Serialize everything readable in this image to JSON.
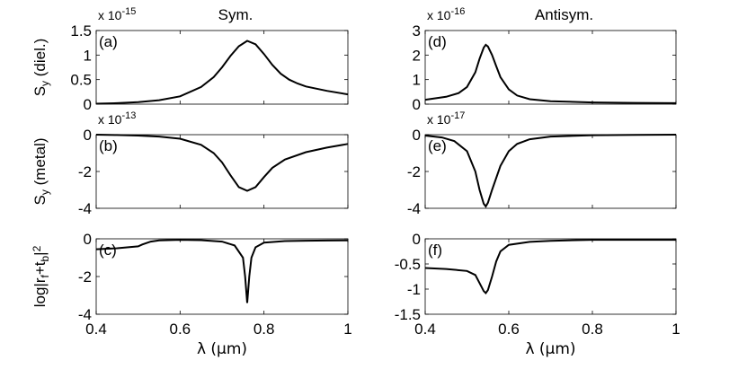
{
  "chart_data": [
    {
      "id": "a",
      "type": "line",
      "column_title": "Sym.",
      "panel_label": "(a)",
      "ylabel": "S_y (diel.)",
      "exponent_label": "x 10^-15",
      "xlim": [
        0.4,
        1.0
      ],
      "ylim": [
        0,
        1.5
      ],
      "xticks": [
        "0.4",
        "0.6",
        "0.8",
        "1"
      ],
      "xticks_shown": false,
      "yticks": [
        {
          "v": 0,
          "t": "0"
        },
        {
          "v": 0.5,
          "t": "0.5"
        },
        {
          "v": 1,
          "t": "1"
        },
        {
          "v": 1.5,
          "t": "1.5"
        }
      ],
      "x": [
        0.4,
        0.45,
        0.5,
        0.55,
        0.6,
        0.65,
        0.68,
        0.7,
        0.72,
        0.74,
        0.76,
        0.78,
        0.8,
        0.82,
        0.84,
        0.86,
        0.88,
        0.9,
        0.95,
        1.0
      ],
      "y": [
        0.01,
        0.02,
        0.04,
        0.08,
        0.16,
        0.35,
        0.55,
        0.75,
        0.98,
        1.18,
        1.29,
        1.22,
        1.02,
        0.8,
        0.62,
        0.5,
        0.42,
        0.36,
        0.27,
        0.2
      ]
    },
    {
      "id": "b",
      "type": "line",
      "panel_label": "(b)",
      "ylabel": "S_y (metal)",
      "exponent_label": "x 10^-13",
      "xlim": [
        0.4,
        1.0
      ],
      "ylim": [
        -4,
        0
      ],
      "xticks": [
        "0.4",
        "0.6",
        "0.8",
        "1"
      ],
      "xticks_shown": false,
      "yticks": [
        {
          "v": -4,
          "t": "-4"
        },
        {
          "v": -2,
          "t": "-2"
        },
        {
          "v": 0,
          "t": "0"
        }
      ],
      "x": [
        0.4,
        0.45,
        0.5,
        0.55,
        0.6,
        0.65,
        0.68,
        0.7,
        0.72,
        0.74,
        0.76,
        0.78,
        0.8,
        0.82,
        0.85,
        0.9,
        0.95,
        1.0
      ],
      "y": [
        0.0,
        -0.02,
        -0.05,
        -0.1,
        -0.22,
        -0.55,
        -1.0,
        -1.5,
        -2.2,
        -2.85,
        -3.05,
        -2.85,
        -2.3,
        -1.8,
        -1.35,
        -0.95,
        -0.7,
        -0.5
      ]
    },
    {
      "id": "c",
      "type": "line",
      "panel_label": "(c)",
      "ylabel": "log|r_f+t_b|^2",
      "xlim": [
        0.4,
        1.0
      ],
      "ylim": [
        -4,
        0
      ],
      "xticks": [
        "0.4",
        "0.6",
        "0.8",
        "1"
      ],
      "xticks_shown": true,
      "yticks": [
        {
          "v": -4,
          "t": "-4"
        },
        {
          "v": -2,
          "t": "-2"
        },
        {
          "v": 0,
          "t": "0"
        }
      ],
      "xlabel": "λ (μm)",
      "x": [
        0.4,
        0.45,
        0.5,
        0.51,
        0.53,
        0.55,
        0.6,
        0.65,
        0.7,
        0.73,
        0.75,
        0.755,
        0.76,
        0.765,
        0.77,
        0.78,
        0.8,
        0.85,
        0.9,
        0.95,
        1.0
      ],
      "y": [
        -0.55,
        -0.5,
        -0.4,
        -0.3,
        -0.15,
        -0.08,
        -0.05,
        -0.07,
        -0.15,
        -0.35,
        -1.0,
        -2.0,
        -3.4,
        -2.0,
        -1.0,
        -0.45,
        -0.2,
        -0.12,
        -0.1,
        -0.09,
        -0.08
      ]
    },
    {
      "id": "d",
      "type": "line",
      "column_title": "Antisym.",
      "panel_label": "(d)",
      "ylabel": "",
      "exponent_label": "x 10^-16",
      "xlim": [
        0.4,
        1.0
      ],
      "ylim": [
        0,
        3
      ],
      "xticks": [
        "0.4",
        "0.6",
        "0.8",
        "1"
      ],
      "xticks_shown": false,
      "yticks": [
        {
          "v": 0,
          "t": "0"
        },
        {
          "v": 1,
          "t": "1"
        },
        {
          "v": 2,
          "t": "2"
        },
        {
          "v": 3,
          "t": "3"
        }
      ],
      "x": [
        0.4,
        0.45,
        0.48,
        0.5,
        0.52,
        0.53,
        0.54,
        0.545,
        0.55,
        0.56,
        0.57,
        0.58,
        0.6,
        0.62,
        0.65,
        0.7,
        0.8,
        0.9,
        1.0
      ],
      "y": [
        0.18,
        0.3,
        0.45,
        0.7,
        1.3,
        1.85,
        2.3,
        2.42,
        2.35,
        2.0,
        1.55,
        1.1,
        0.6,
        0.35,
        0.2,
        0.12,
        0.07,
        0.05,
        0.04
      ]
    },
    {
      "id": "e",
      "type": "line",
      "panel_label": "(e)",
      "ylabel": "",
      "exponent_label": "x 10^-17",
      "xlim": [
        0.4,
        1.0
      ],
      "ylim": [
        -4,
        0
      ],
      "xticks": [
        "0.4",
        "0.6",
        "0.8",
        "1"
      ],
      "xticks_shown": false,
      "yticks": [
        {
          "v": -4,
          "t": "-4"
        },
        {
          "v": -2,
          "t": "-2"
        },
        {
          "v": 0,
          "t": "0"
        }
      ],
      "x": [
        0.4,
        0.44,
        0.47,
        0.5,
        0.52,
        0.53,
        0.54,
        0.545,
        0.55,
        0.56,
        0.58,
        0.6,
        0.62,
        0.65,
        0.7,
        0.8,
        0.9,
        1.0
      ],
      "y": [
        -0.05,
        -0.15,
        -0.35,
        -0.9,
        -2.0,
        -3.0,
        -3.75,
        -3.9,
        -3.7,
        -3.0,
        -1.7,
        -0.9,
        -0.5,
        -0.25,
        -0.1,
        -0.03,
        -0.01,
        0.0
      ]
    },
    {
      "id": "f",
      "type": "line",
      "panel_label": "(f)",
      "ylabel": "",
      "xlim": [
        0.4,
        1.0
      ],
      "ylim": [
        -1.5,
        0
      ],
      "xticks": [
        "0.4",
        "0.6",
        "0.8",
        "1"
      ],
      "xticks_shown": true,
      "yticks": [
        {
          "v": -1.5,
          "t": "-1.5"
        },
        {
          "v": -1,
          "t": "-1"
        },
        {
          "v": -0.5,
          "t": "-0.5"
        },
        {
          "v": 0,
          "t": "0"
        }
      ],
      "xlabel": "λ (μm)",
      "x": [
        0.4,
        0.45,
        0.5,
        0.52,
        0.53,
        0.54,
        0.545,
        0.55,
        0.56,
        0.57,
        0.58,
        0.6,
        0.65,
        0.7,
        0.8,
        0.9,
        1.0
      ],
      "y": [
        -0.58,
        -0.6,
        -0.64,
        -0.72,
        -0.88,
        -1.04,
        -1.08,
        -1.02,
        -0.75,
        -0.45,
        -0.25,
        -0.12,
        -0.06,
        -0.04,
        -0.02,
        -0.02,
        -0.02
      ]
    }
  ]
}
